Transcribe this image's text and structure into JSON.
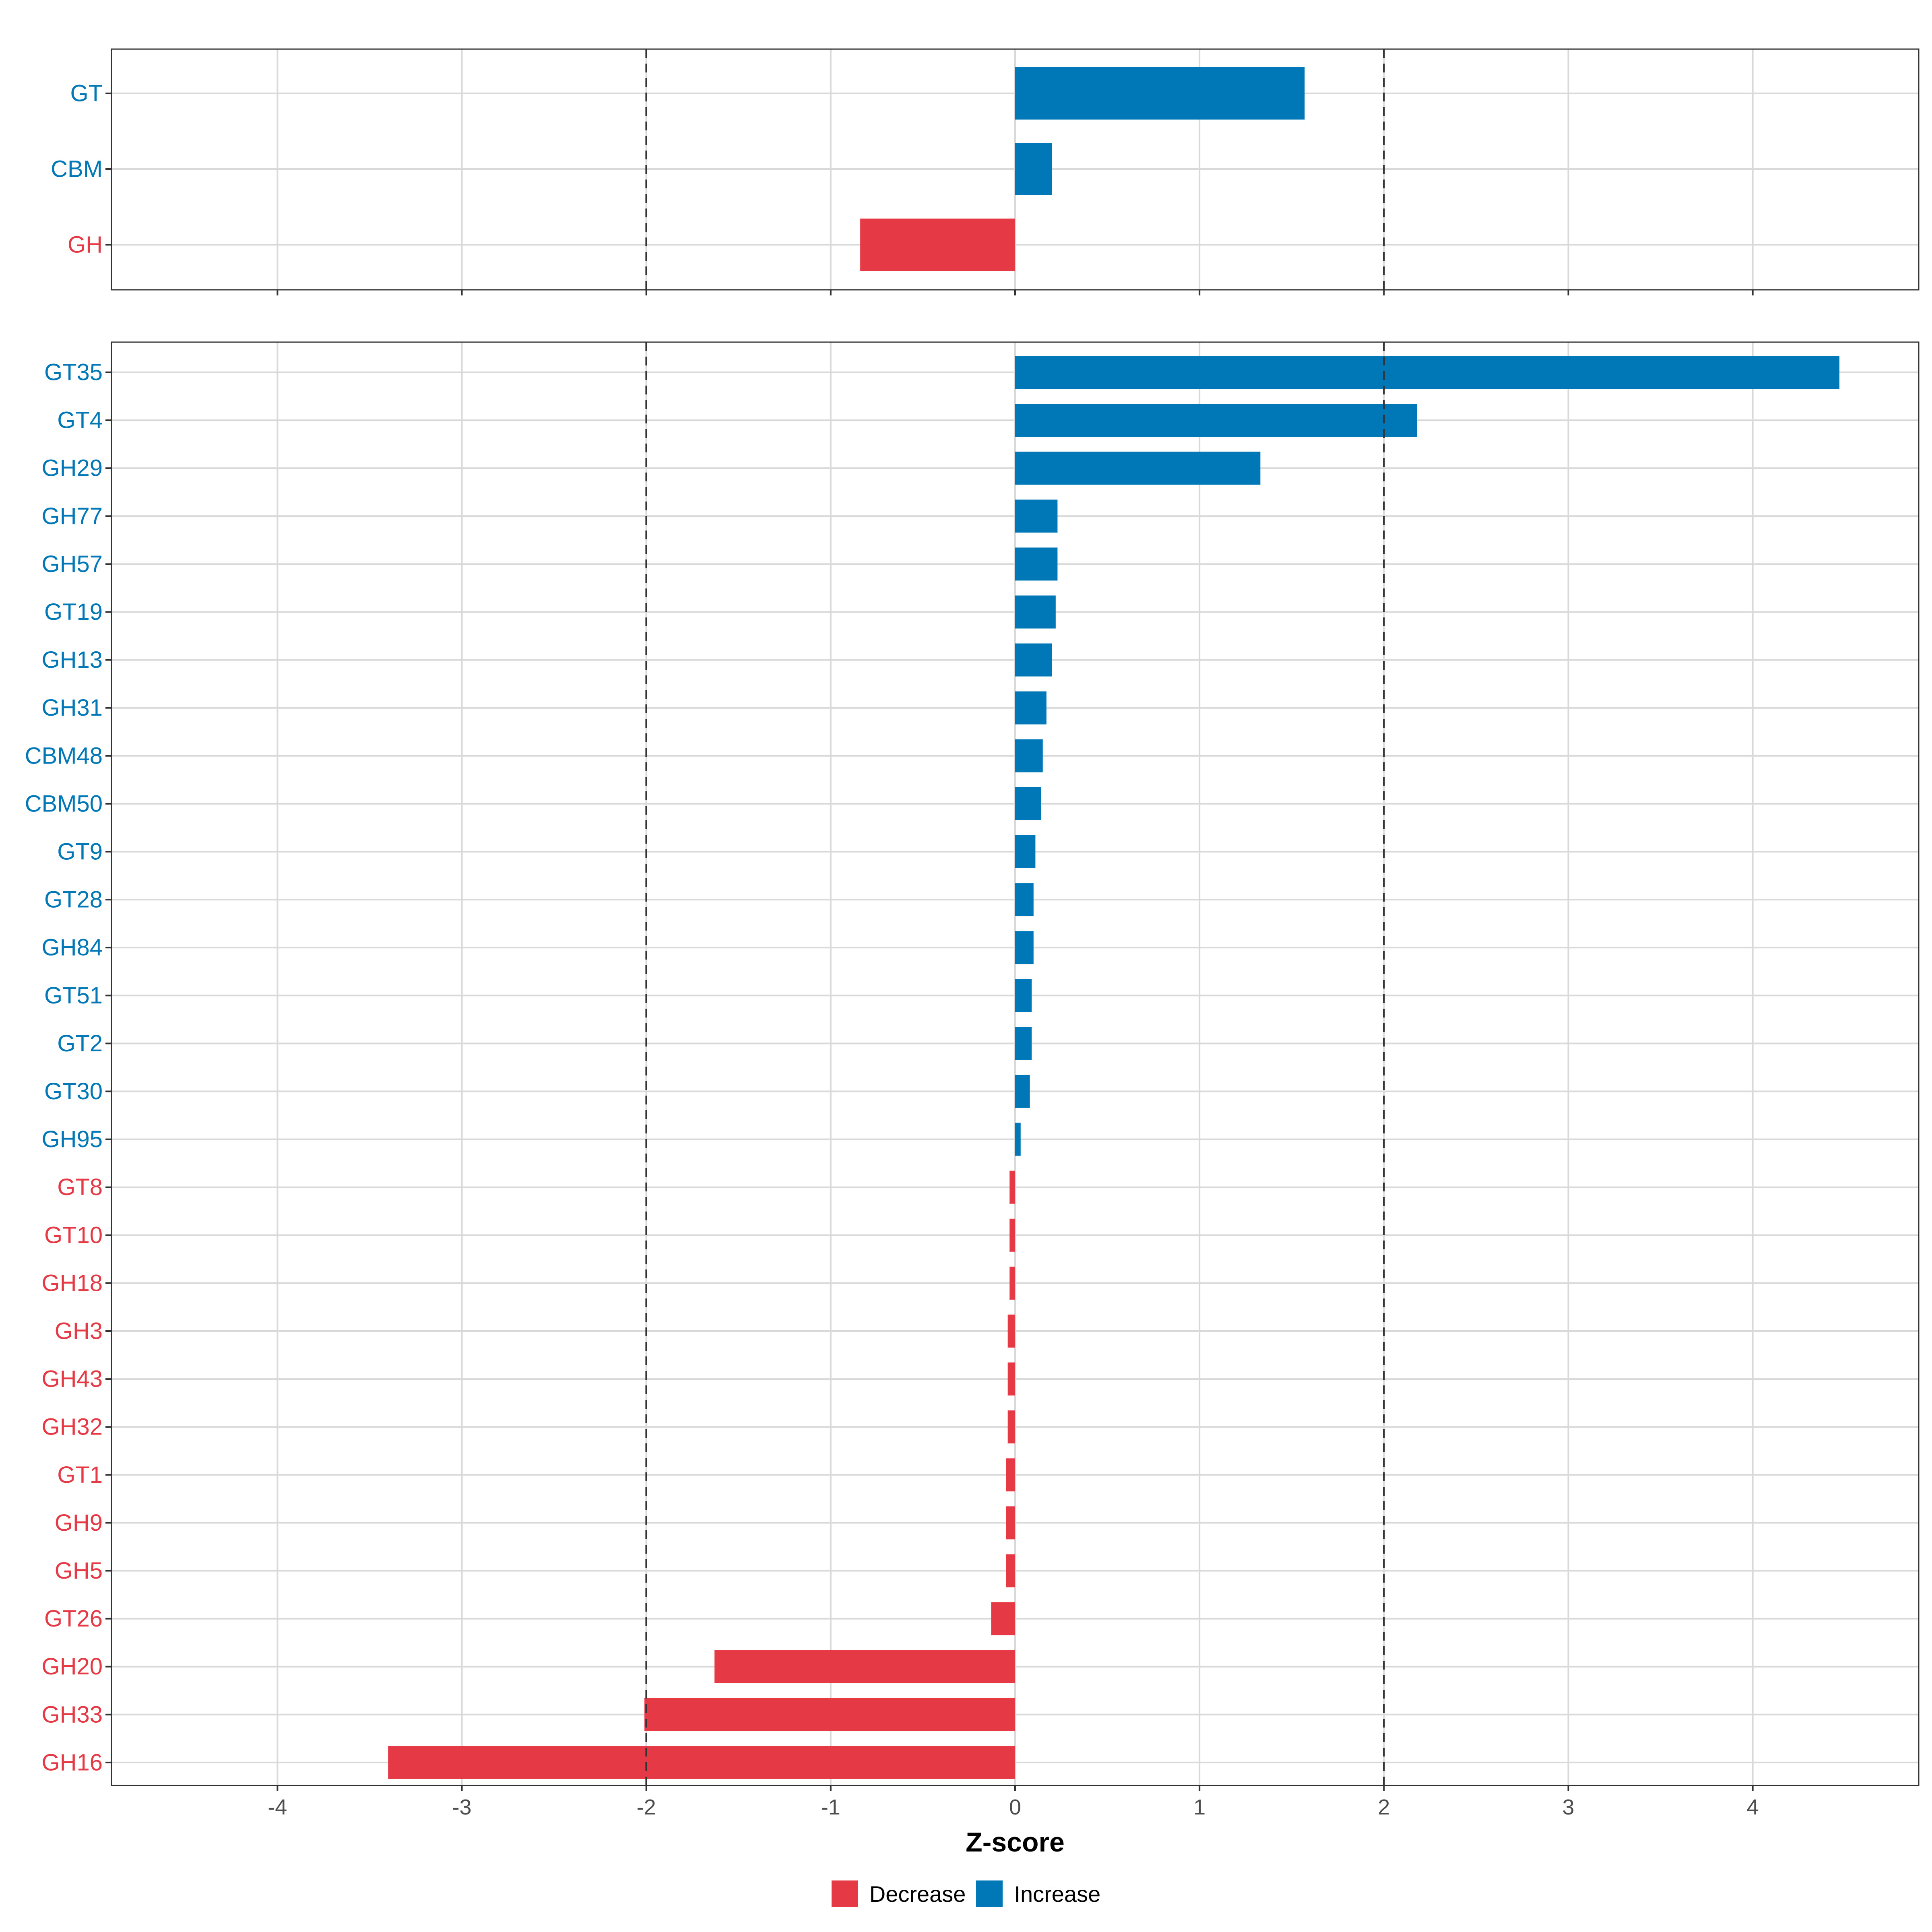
{
  "colors": {
    "decrease": "#e63946",
    "increase": "#0077b6"
  },
  "chart_data": [
    {
      "type": "bar",
      "orientation": "horizontal",
      "panel": "top",
      "categories": [
        "GT",
        "CBM",
        "GH"
      ],
      "values": [
        1.57,
        0.2,
        -0.84
      ],
      "xlim": [
        -4.9,
        4.9
      ],
      "xticks": [
        -4,
        -3,
        -2,
        -1,
        0,
        1,
        2,
        3,
        4
      ],
      "reference_lines": [
        -2,
        2
      ]
    },
    {
      "type": "bar",
      "orientation": "horizontal",
      "panel": "bottom",
      "categories": [
        "GT35",
        "GT4",
        "GH29",
        "GH77",
        "GH57",
        "GT19",
        "GH13",
        "GH31",
        "CBM48",
        "CBM50",
        "GT9",
        "GT28",
        "GH84",
        "GT51",
        "GT2",
        "GT30",
        "GH95",
        "GT8",
        "GT10",
        "GH18",
        "GH3",
        "GH43",
        "GH32",
        "GT1",
        "GH9",
        "GH5",
        "GT26",
        "GH20",
        "GH33",
        "GH16"
      ],
      "values": [
        4.47,
        2.18,
        1.33,
        0.23,
        0.23,
        0.22,
        0.2,
        0.17,
        0.15,
        0.14,
        0.11,
        0.1,
        0.1,
        0.09,
        0.09,
        0.08,
        0.03,
        -0.03,
        -0.03,
        -0.03,
        -0.04,
        -0.04,
        -0.04,
        -0.05,
        -0.05,
        -0.05,
        -0.13,
        -1.63,
        -2.01,
        -3.4
      ],
      "xlim": [
        -4.9,
        4.9
      ],
      "xticks": [
        -4,
        -3,
        -2,
        -1,
        0,
        1,
        2,
        3,
        4
      ],
      "reference_lines": [
        -2,
        2
      ]
    }
  ],
  "xlabel": "Z-score",
  "legend": {
    "position": "bottom",
    "items": [
      {
        "label": "Decrease",
        "key": "decrease"
      },
      {
        "label": "Increase",
        "key": "increase"
      }
    ]
  }
}
